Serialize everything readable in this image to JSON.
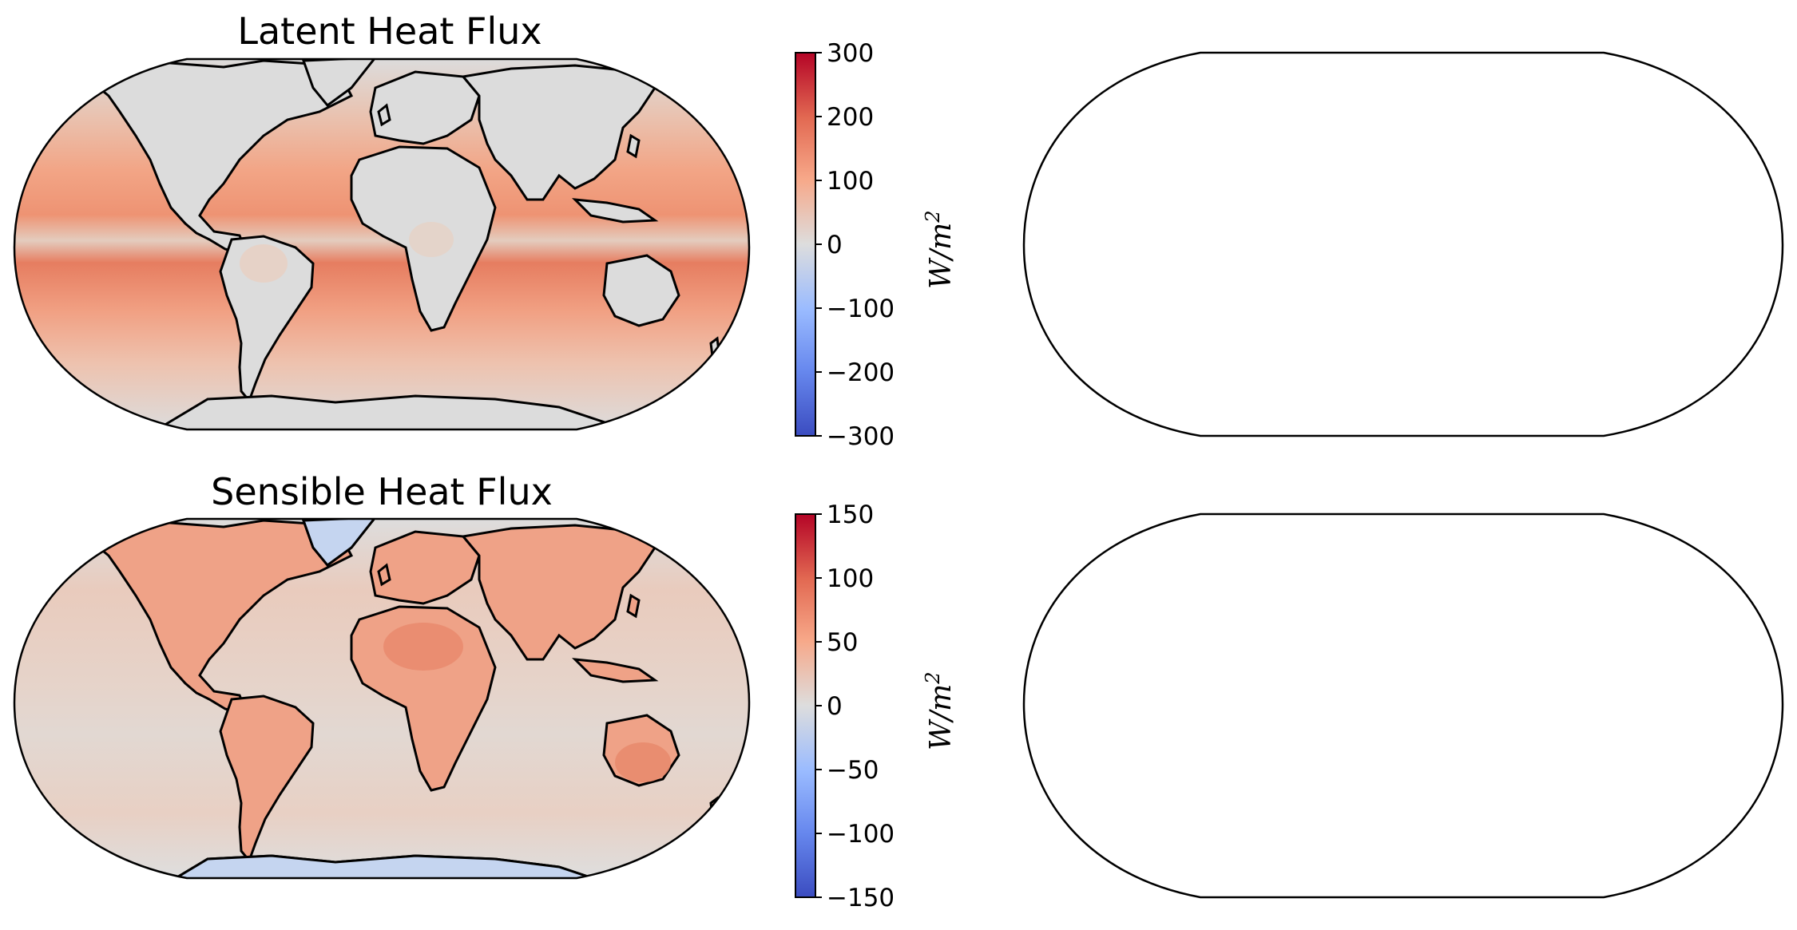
{
  "figure": {
    "panels": [
      {
        "id": "latent",
        "title": "Latent Heat Flux",
        "colorbar": {
          "label": "W/m",
          "label_sup": "2",
          "vmin": -300,
          "vmax": 300,
          "ticks": [
            300,
            200,
            100,
            0,
            -100,
            -200,
            -300
          ],
          "tick_labels": [
            "300",
            "200",
            "100",
            "0",
            "−100",
            "−200",
            "−300"
          ]
        }
      },
      {
        "id": "sensible",
        "title": "Sensible Heat Flux",
        "colorbar": {
          "label": "W/m",
          "label_sup": "2",
          "vmin": -150,
          "vmax": 150,
          "ticks": [
            150,
            100,
            50,
            0,
            -50,
            -100,
            -150
          ],
          "tick_labels": [
            "150",
            "100",
            "50",
            "0",
            "−50",
            "−100",
            "−150"
          ]
        }
      }
    ],
    "empty_panels": 2,
    "projection": "Robinson",
    "colormap": "coolwarm",
    "colors": {
      "cmap_min": "#3b4cc0",
      "cmap_mid": "#dddddd",
      "cmap_max": "#b40426",
      "ocean_latent": "#f0a184",
      "land_latent": "#dcdcdc",
      "ocean_sensible": "#e8d3c8",
      "land_sensible": "#efa488",
      "ice_sensible": "#c5d5f0",
      "coastline": "#000000"
    }
  }
}
